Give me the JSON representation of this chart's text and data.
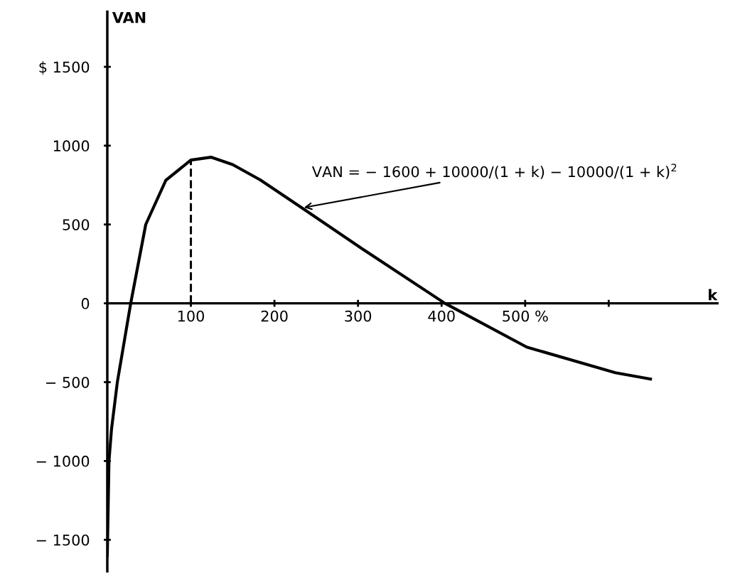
{
  "chart_data": {
    "type": "line",
    "xlabel": "k",
    "ylabel": "VAN",
    "series": [
      {
        "color": "#000000",
        "x": [
          0,
          2,
          5,
          12,
          28,
          46,
          70,
          100,
          124,
          150,
          183,
          233,
          308,
          404,
          502,
          608,
          650
        ],
        "values": [
          -1600,
          -1000,
          -800,
          -500,
          0,
          500,
          780,
          909,
          927,
          880,
          783,
          605,
          335,
          0,
          -278,
          -440,
          -480
        ]
      },
      {
        "color": "#000000",
        "x": [
          100,
          100
        ],
        "values": [
          0,
          909
        ],
        "line_style": "dashed"
      }
    ],
    "xlim": [
      0,
      730
    ],
    "ylim": [
      -1700,
      1850
    ],
    "xticks": [
      100,
      200,
      300,
      400,
      {
        "value": 500,
        "label": "500 %"
      },
      {
        "value": 600,
        "label": null
      }
    ],
    "yticks": [
      {
        "value": -1500,
        "label": "− 1500"
      },
      {
        "value": -1000,
        "label": "− 1000"
      },
      {
        "value": -500,
        "label": "− 500"
      },
      0,
      500,
      1000,
      {
        "value": 1500,
        "label": "$ 1500"
      }
    ],
    "grid": false,
    "marker": "none",
    "line_style": "solid",
    "annotations": [
      {
        "text": "VAN = − 1600 + 10000/(1 + k) − 10000/(1 + k)$^{2}$",
        "x": 233,
        "y": 605
      }
    ]
  }
}
